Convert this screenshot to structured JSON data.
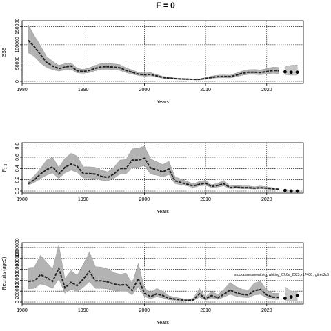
{
  "title": "F = 0",
  "chart_data": [
    {
      "type": "line",
      "name": "ssb",
      "xlabel": "Years",
      "ylabel": "SSB",
      "xlim": [
        1980,
        2026
      ],
      "ylim": [
        0,
        160000
      ],
      "xticks": [
        1980,
        1990,
        2000,
        2010,
        2020
      ],
      "yticks": [
        0,
        50000,
        100000,
        150000
      ],
      "ytick_labels": [
        "0",
        "50000",
        "100000",
        "150000"
      ],
      "grid": "dotted",
      "x": [
        1981,
        1982,
        1983,
        1984,
        1985,
        1986,
        1987,
        1988,
        1989,
        1990,
        1991,
        1992,
        1993,
        1994,
        1995,
        1996,
        1997,
        1998,
        1999,
        2000,
        2001,
        2002,
        2003,
        2004,
        2005,
        2006,
        2007,
        2008,
        2009,
        2010,
        2011,
        2012,
        2013,
        2014,
        2015,
        2016,
        2017,
        2018,
        2019,
        2020,
        2021,
        2022
      ],
      "median": [
        112000,
        95000,
        73000,
        52000,
        42000,
        35000,
        39000,
        42000,
        29000,
        27000,
        30000,
        36000,
        40000,
        40000,
        39000,
        37000,
        30000,
        25000,
        20000,
        18000,
        19000,
        15000,
        11000,
        9000,
        7500,
        6500,
        6000,
        5500,
        5500,
        8000,
        11000,
        13000,
        13500,
        13000,
        17000,
        22000,
        25000,
        25000,
        24000,
        27000,
        30000,
        29000
      ],
      "lower": [
        78000,
        68000,
        50000,
        38000,
        32000,
        28000,
        31000,
        33000,
        23000,
        22000,
        24000,
        29000,
        33000,
        33000,
        32000,
        30000,
        24000,
        20000,
        16000,
        14000,
        15000,
        12000,
        8500,
        7000,
        5800,
        5000,
        4600,
        4200,
        4200,
        6000,
        8500,
        9500,
        9800,
        9500,
        12500,
        16500,
        19000,
        19000,
        18000,
        20000,
        22000,
        21000
      ],
      "upper": [
        155000,
        125000,
        98000,
        68000,
        55000,
        44000,
        48000,
        51000,
        36000,
        33000,
        37000,
        44000,
        49000,
        49000,
        48000,
        46000,
        37000,
        31000,
        25000,
        23000,
        24000,
        19000,
        14000,
        11500,
        9500,
        8300,
        7700,
        7000,
        7000,
        10500,
        14500,
        17000,
        17500,
        17000,
        22500,
        28500,
        32000,
        32500,
        31500,
        35000,
        39000,
        38000
      ],
      "projection": {
        "x": [
          2023,
          2024,
          2025
        ],
        "median": [
          26000,
          25000,
          25000
        ],
        "lower": [
          18000,
          17000,
          17000
        ],
        "upper": [
          40000,
          44000,
          45000
        ]
      }
    },
    {
      "type": "line",
      "name": "fbar",
      "xlabel": "Years",
      "ylabel": "F",
      "ylabel_sub": "1-3",
      "xlim": [
        1980,
        2026
      ],
      "ylim": [
        0,
        0.82
      ],
      "xticks": [
        1980,
        1990,
        2000,
        2010,
        2020
      ],
      "yticks": [
        0,
        0.2,
        0.4,
        0.6,
        0.8
      ],
      "ytick_labels": [
        "0.0",
        "0.2",
        "0.4",
        "0.6",
        "0.8"
      ],
      "grid": "dotted",
      "x": [
        1981,
        1982,
        1983,
        1984,
        1985,
        1986,
        1987,
        1988,
        1989,
        1990,
        1991,
        1992,
        1993,
        1994,
        1995,
        1996,
        1997,
        1998,
        1999,
        2000,
        2001,
        2002,
        2003,
        2004,
        2005,
        2006,
        2007,
        2008,
        2009,
        2010,
        2011,
        2012,
        2013,
        2014,
        2015,
        2016,
        2017,
        2018,
        2019,
        2020,
        2021,
        2022
      ],
      "median": [
        0.13,
        0.2,
        0.3,
        0.38,
        0.43,
        0.3,
        0.42,
        0.48,
        0.44,
        0.31,
        0.31,
        0.3,
        0.26,
        0.24,
        0.3,
        0.4,
        0.4,
        0.55,
        0.55,
        0.58,
        0.41,
        0.38,
        0.34,
        0.39,
        0.18,
        0.15,
        0.12,
        0.09,
        0.12,
        0.14,
        0.08,
        0.1,
        0.13,
        0.06,
        0.07,
        0.06,
        0.06,
        0.05,
        0.06,
        0.05,
        0.04,
        0.03
      ],
      "lower": [
        0.1,
        0.15,
        0.22,
        0.28,
        0.32,
        0.22,
        0.32,
        0.37,
        0.33,
        0.23,
        0.23,
        0.22,
        0.19,
        0.18,
        0.22,
        0.3,
        0.3,
        0.42,
        0.42,
        0.45,
        0.3,
        0.28,
        0.25,
        0.29,
        0.13,
        0.11,
        0.09,
        0.06,
        0.09,
        0.1,
        0.06,
        0.07,
        0.09,
        0.04,
        0.05,
        0.04,
        0.04,
        0.035,
        0.04,
        0.035,
        0.03,
        0.02
      ],
      "upper": [
        0.17,
        0.27,
        0.4,
        0.55,
        0.6,
        0.42,
        0.58,
        0.67,
        0.62,
        0.43,
        0.43,
        0.42,
        0.37,
        0.34,
        0.42,
        0.55,
        0.56,
        0.75,
        0.76,
        0.8,
        0.57,
        0.52,
        0.47,
        0.53,
        0.26,
        0.21,
        0.17,
        0.13,
        0.17,
        0.19,
        0.11,
        0.14,
        0.19,
        0.09,
        0.1,
        0.09,
        0.09,
        0.075,
        0.09,
        0.075,
        0.06,
        0.045
      ],
      "projection": {
        "x": [
          2023,
          2024,
          2025
        ],
        "median": [
          0.01,
          0.0,
          0.0
        ],
        "lower": [
          0.0,
          0.0,
          0.0
        ],
        "upper": [
          0.04,
          0.0,
          0.0
        ]
      }
    },
    {
      "type": "line",
      "name": "recruitment",
      "xlabel": "Years",
      "ylabel": "Recruits (age0)",
      "xlim": [
        1980,
        2026
      ],
      "ylim": [
        0,
        1050000
      ],
      "xticks": [
        1980,
        1990,
        2000,
        2010,
        2020
      ],
      "yticks": [
        0,
        200000,
        400000,
        600000,
        800000,
        1000000
      ],
      "ytick_labels": [
        "0",
        "200000",
        "400000",
        "600000",
        "800000",
        "1000000"
      ],
      "grid": "dotted",
      "annotation": "stockassessment.org, whiting_07.6a_2023, r17406 , git:ec2c5",
      "x": [
        1981,
        1982,
        1983,
        1984,
        1985,
        1986,
        1987,
        1988,
        1989,
        1990,
        1991,
        1992,
        1993,
        1994,
        1995,
        1996,
        1997,
        1998,
        1999,
        2000,
        2001,
        2002,
        2003,
        2004,
        2005,
        2006,
        2007,
        2008,
        2009,
        2010,
        2011,
        2012,
        2013,
        2014,
        2015,
        2016,
        2017,
        2018,
        2019,
        2020,
        2021,
        2022
      ],
      "median": [
        380000,
        390000,
        500000,
        450000,
        380000,
        620000,
        260000,
        360000,
        300000,
        420000,
        560000,
        390000,
        390000,
        370000,
        330000,
        310000,
        320000,
        210000,
        430000,
        160000,
        100000,
        150000,
        120000,
        70000,
        55000,
        40000,
        30000,
        40000,
        150000,
        60000,
        120000,
        80000,
        140000,
        220000,
        170000,
        140000,
        130000,
        210000,
        230000,
        130000,
        90000,
        85000
      ],
      "lower": [
        240000,
        250000,
        330000,
        300000,
        250000,
        420000,
        160000,
        230000,
        190000,
        270000,
        370000,
        250000,
        250000,
        240000,
        210000,
        200000,
        200000,
        130000,
        280000,
        100000,
        60000,
        95000,
        75000,
        42000,
        33000,
        24000,
        18000,
        24000,
        90000,
        35000,
        75000,
        48000,
        90000,
        140000,
        105000,
        88000,
        80000,
        130000,
        140000,
        80000,
        50000,
        45000
      ],
      "upper": [
        630000,
        640000,
        860000,
        730000,
        610000,
        1050000,
        430000,
        580000,
        490000,
        690000,
        920000,
        650000,
        640000,
        610000,
        540000,
        510000,
        530000,
        340000,
        710000,
        260000,
        170000,
        250000,
        200000,
        115000,
        90000,
        68000,
        52000,
        68000,
        250000,
        100000,
        200000,
        135000,
        230000,
        360000,
        285000,
        235000,
        220000,
        350000,
        380000,
        220000,
        160000,
        160000
      ],
      "projection": {
        "x": [
          2023,
          2024,
          2025
        ],
        "median": [
          70000,
          95000,
          120000
        ],
        "lower": [
          15000,
          20000,
          30000
        ],
        "upper": [
          280000,
          200000,
          200000
        ]
      }
    }
  ]
}
